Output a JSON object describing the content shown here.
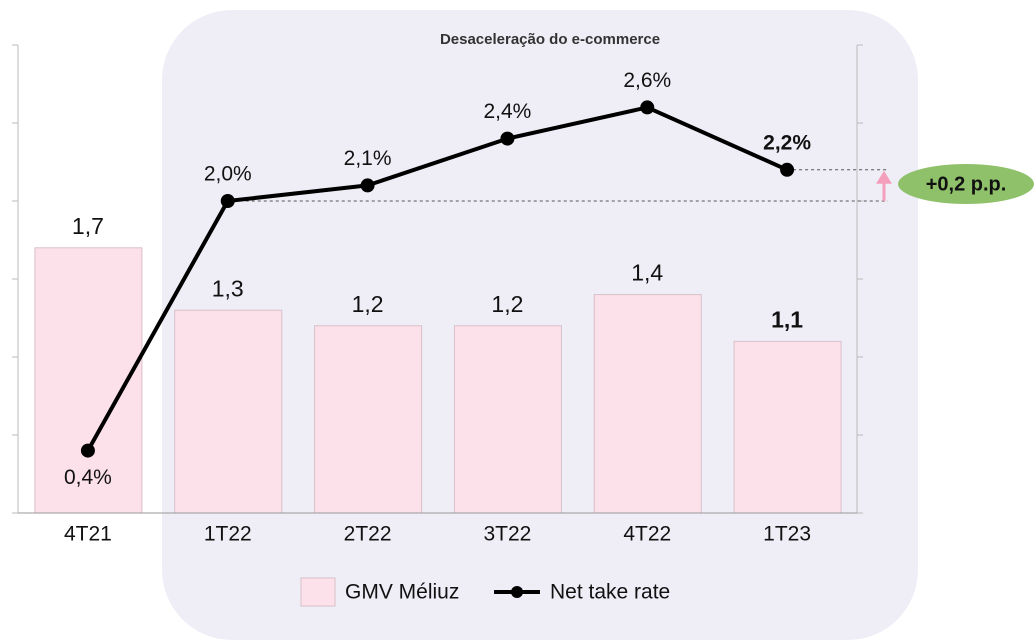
{
  "chart_data": {
    "type": "bar_line",
    "title": "Desaceleração do e-commerce",
    "categories": [
      "4T21",
      "1T22",
      "2T22",
      "3T22",
      "4T22",
      "1T23"
    ],
    "series": [
      {
        "name": "GMV Méliuz",
        "type": "bar",
        "color": "#fde1ea",
        "values": [
          1.7,
          1.3,
          1.2,
          1.2,
          1.4,
          1.1
        ],
        "value_labels": [
          "1,7",
          "1,3",
          "1,2",
          "1,2",
          "1,4",
          "1,1"
        ]
      },
      {
        "name": "Net take rate",
        "type": "line",
        "axis": "y2",
        "color": "#000000",
        "values": [
          0.4,
          2.0,
          2.1,
          2.4,
          2.6,
          2.2
        ],
        "value_labels": [
          "0,4%",
          "2,0%",
          "2,1%",
          "2,4%",
          "2,6%",
          "2,2%"
        ]
      }
    ],
    "ylim": [
      0,
      3
    ],
    "yticks": [
      0,
      0.5,
      1,
      1.5,
      2,
      2.5,
      3
    ],
    "y2lim": [
      0,
      3
    ],
    "y2ticks": [
      0,
      0.5,
      1,
      1.5,
      2,
      2.5,
      3
    ],
    "annotation": "+0,2 p.p.",
    "legend": "bottom"
  }
}
